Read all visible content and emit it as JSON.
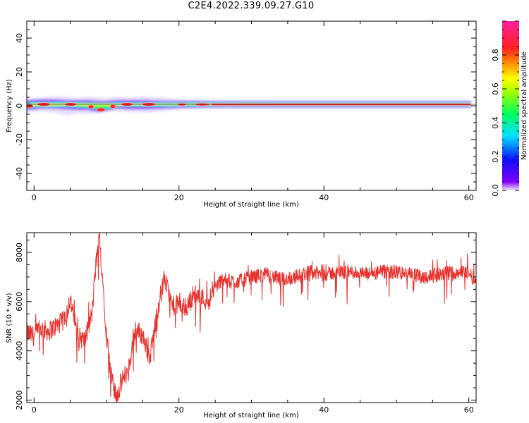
{
  "title": "C2E4.2022.339.09.27.G10",
  "colors": {
    "snr_line": "#e8312c",
    "axis": "#000000"
  },
  "chart_data": [
    {
      "type": "heatmap",
      "xlabel": "Height of straight line (km)",
      "ylabel": "Frequency (Hz)",
      "xlim": [
        -1,
        61
      ],
      "ylim": [
        -50,
        50
      ],
      "xticks": [
        0,
        20,
        40,
        60
      ],
      "yticks": [
        40,
        20,
        0,
        -20,
        -40
      ],
      "colorbar": {
        "label": "Normalized spectral amplitude",
        "range": [
          0,
          1
        ],
        "ticks": [
          "0.0",
          "0.2",
          "0.4",
          "0.6",
          "0.8"
        ],
        "colormap": "rainbow (purple-blue-cyan-green-yellow-red-magenta)"
      },
      "band_center_hz": 0,
      "dominant_frequency_hz": [
        [
          -1,
          -2
        ],
        [
          0,
          -2
        ],
        [
          1,
          0
        ],
        [
          5,
          0
        ],
        [
          8,
          -1
        ],
        [
          9,
          -2
        ],
        [
          10,
          -3
        ],
        [
          11,
          -1
        ],
        [
          12,
          0
        ],
        [
          60,
          0
        ]
      ]
    },
    {
      "type": "line",
      "xlabel": "Height of straight line (km)",
      "ylabel": "SNR (10 * v/v)",
      "xlim": [
        -1,
        61
      ],
      "ylim": [
        1900,
        8800
      ],
      "xticks": [
        0,
        20,
        40,
        60
      ],
      "yticks": [
        2000,
        4000,
        6000,
        8000
      ],
      "series": [
        {
          "x": [
            -1,
            0,
            1,
            2,
            3,
            4,
            5,
            6,
            7,
            8,
            8.5,
            9,
            9.5,
            10,
            10.5,
            11,
            11.5,
            12,
            12.5,
            13,
            14,
            15,
            16,
            17,
            18,
            19,
            20,
            21,
            22,
            23,
            24,
            25,
            26,
            28,
            30,
            32,
            34,
            36,
            38,
            40,
            42,
            44,
            46,
            48,
            50,
            52,
            54,
            56,
            58,
            60,
            61
          ],
          "y": [
            4700,
            4600,
            4900,
            4800,
            5000,
            5200,
            6100,
            4600,
            4400,
            5500,
            7400,
            8600,
            6800,
            4600,
            3300,
            2400,
            2200,
            2700,
            3000,
            3200,
            4900,
            4600,
            3700,
            5600,
            7000,
            5800,
            5900,
            5700,
            6300,
            6200,
            6000,
            6600,
            6900,
            6800,
            7000,
            7100,
            6900,
            7000,
            7200,
            7100,
            7200,
            7200,
            7100,
            7200,
            7200,
            7100,
            7000,
            7100,
            7200,
            7200,
            6800
          ]
        }
      ]
    }
  ]
}
